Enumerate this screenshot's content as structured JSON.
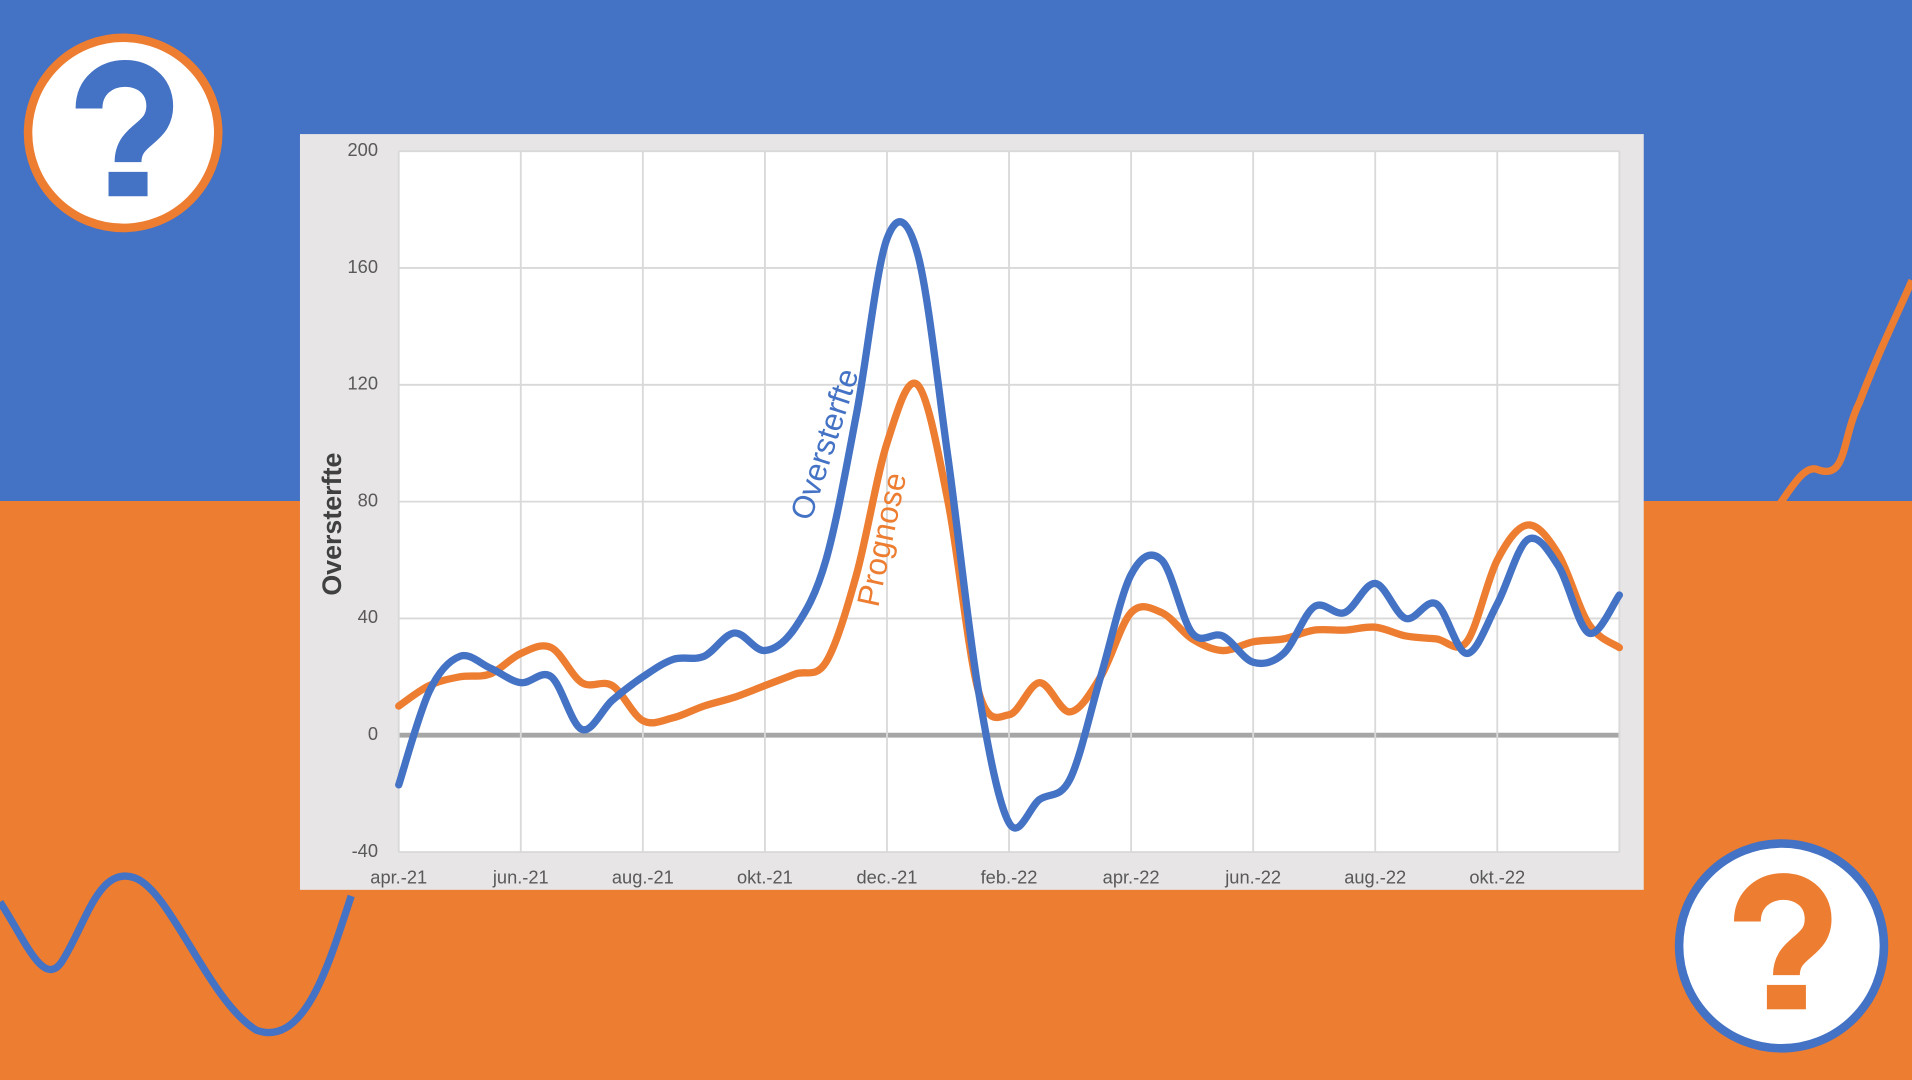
{
  "chart_data": {
    "type": "line",
    "y_label": "Oversterfte",
    "categories": [
      "apr.-21",
      null,
      null,
      null,
      "jun.-21",
      null,
      null,
      null,
      "aug.-21",
      null,
      null,
      null,
      "okt.-21",
      null,
      null,
      null,
      "dec.-21",
      null,
      null,
      null,
      "feb.-22",
      null,
      null,
      null,
      "apr.-22",
      null,
      null,
      null,
      "jun.-22",
      null,
      null,
      null,
      "aug.-22",
      null,
      null,
      null,
      "okt.-22",
      null,
      null,
      null,
      null
    ],
    "series": [
      {
        "name": "Oversterfte",
        "color": "#4472c4",
        "values": [
          -17,
          15,
          27,
          23,
          18,
          20,
          2,
          12,
          20,
          26,
          27,
          35,
          29,
          37,
          60,
          110,
          170,
          165,
          95,
          15,
          -30,
          -22,
          -15,
          20,
          55,
          60,
          35,
          34,
          25,
          28,
          44,
          42,
          52,
          40,
          45,
          28,
          45,
          67,
          58,
          35,
          48
        ]
      },
      {
        "name": "Prognose",
        "color": "#ed7d31",
        "values": [
          10,
          17,
          20,
          21,
          28,
          30,
          18,
          17,
          5,
          6,
          10,
          13,
          17,
          21,
          25,
          55,
          100,
          120,
          80,
          15,
          7,
          18,
          8,
          20,
          42,
          42,
          33,
          29,
          32,
          33,
          36,
          36,
          37,
          34,
          33,
          32,
          60,
          72,
          62,
          38,
          30
        ]
      }
    ],
    "ylim": [
      -40,
      200
    ],
    "yticks": [
      -40,
      0,
      40,
      80,
      120,
      160,
      200
    ],
    "grid": true
  }
}
